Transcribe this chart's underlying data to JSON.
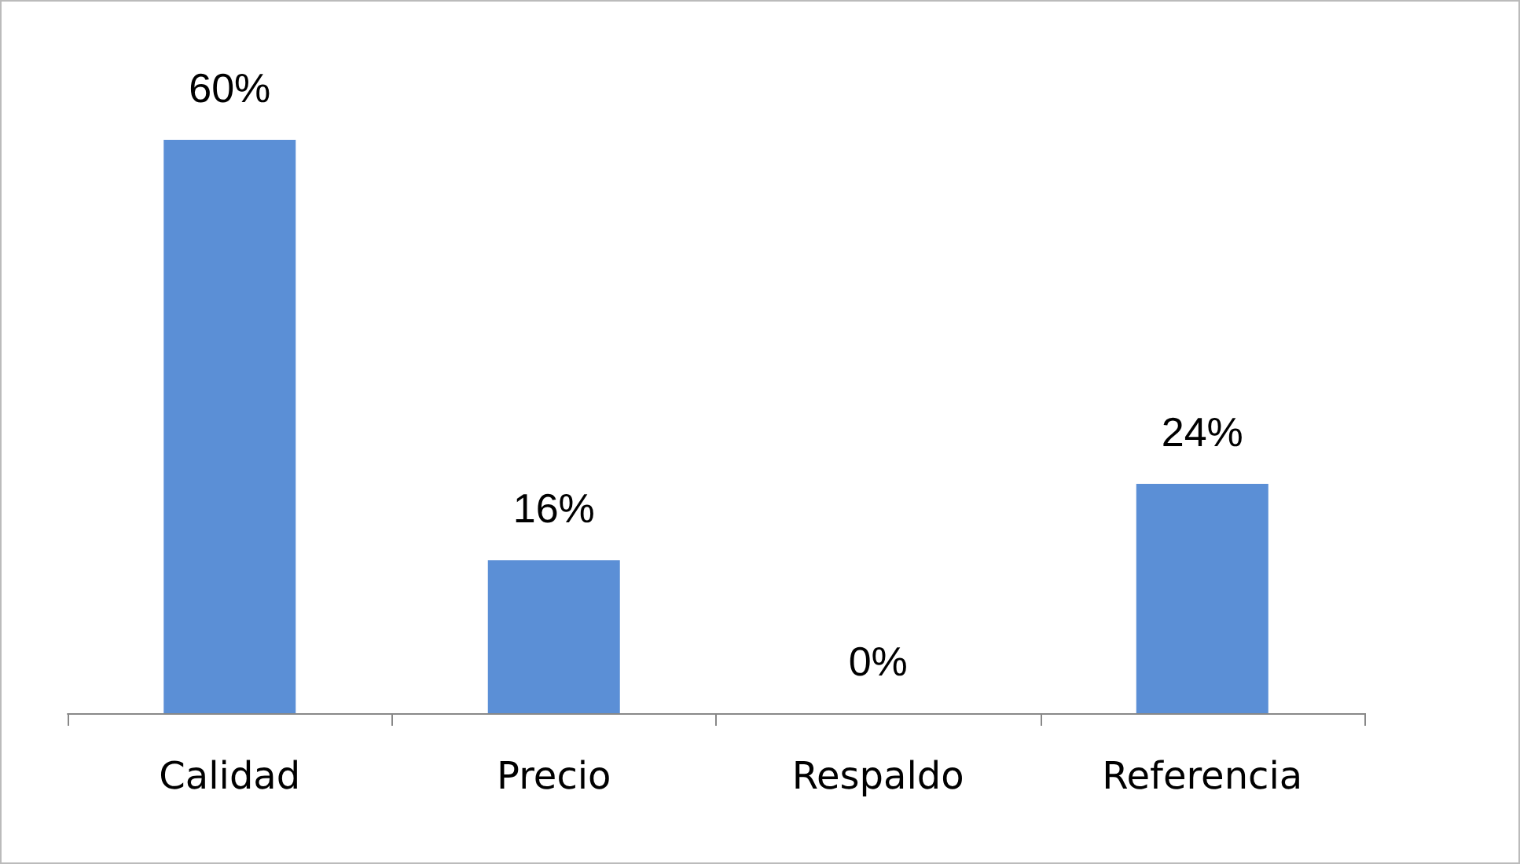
{
  "chart_data": {
    "type": "bar",
    "categories": [
      "Calidad",
      "Precio",
      "Respaldo",
      "Referencia"
    ],
    "values": [
      60,
      16,
      0,
      24
    ],
    "value_labels": [
      "60%",
      "16%",
      "0%",
      "24%"
    ],
    "color": "#5b8fd6"
  }
}
